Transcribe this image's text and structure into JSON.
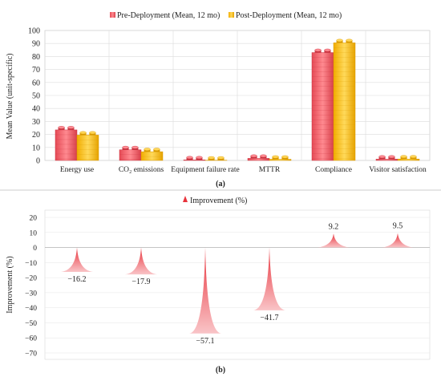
{
  "chart_data": [
    {
      "type": "bar",
      "panel_label": "(a)",
      "ylabel": "Mean Value (unit-specific)",
      "ylim": [
        0,
        100
      ],
      "yticks": [
        0,
        10,
        20,
        30,
        40,
        50,
        60,
        70,
        80,
        90,
        100
      ],
      "grid": true,
      "legend_position": "top",
      "categories": [
        "Energy use",
        "CO₂ emissions",
        "Equipment failure rate",
        "MTTR",
        "Compliance",
        "Visitor satisfaction"
      ],
      "series": [
        {
          "name": "Pre-Deployment (Mean, 12 mo)",
          "color": "#f0606a",
          "values": [
            23.5,
            8.2,
            0.4,
            1.6,
            83,
            1.0
          ]
        },
        {
          "name": "Post-Deployment (Mean, 12 mo)",
          "color": "#ffc21a",
          "values": [
            19.5,
            6.7,
            0.2,
            0.9,
            90.5,
            1.1
          ]
        }
      ]
    },
    {
      "type": "bar",
      "panel_label": "(b)",
      "ylabel": "Improvement (%)",
      "ylim": [
        -70,
        20
      ],
      "yticks": [
        20,
        10,
        0,
        -10,
        -20,
        -30,
        -40,
        -50,
        -60,
        -70
      ],
      "grid": true,
      "legend_position": "top",
      "series": [
        {
          "name": "Improvement (%)",
          "color": "#e8333c",
          "values": [
            -16.2,
            -17.9,
            -57.1,
            -41.7,
            9.2,
            9.5
          ]
        }
      ],
      "data_labels": [
        "−16.2",
        "−17.9",
        "−57.1",
        "−41.7",
        "9.2",
        "9.5"
      ]
    }
  ]
}
